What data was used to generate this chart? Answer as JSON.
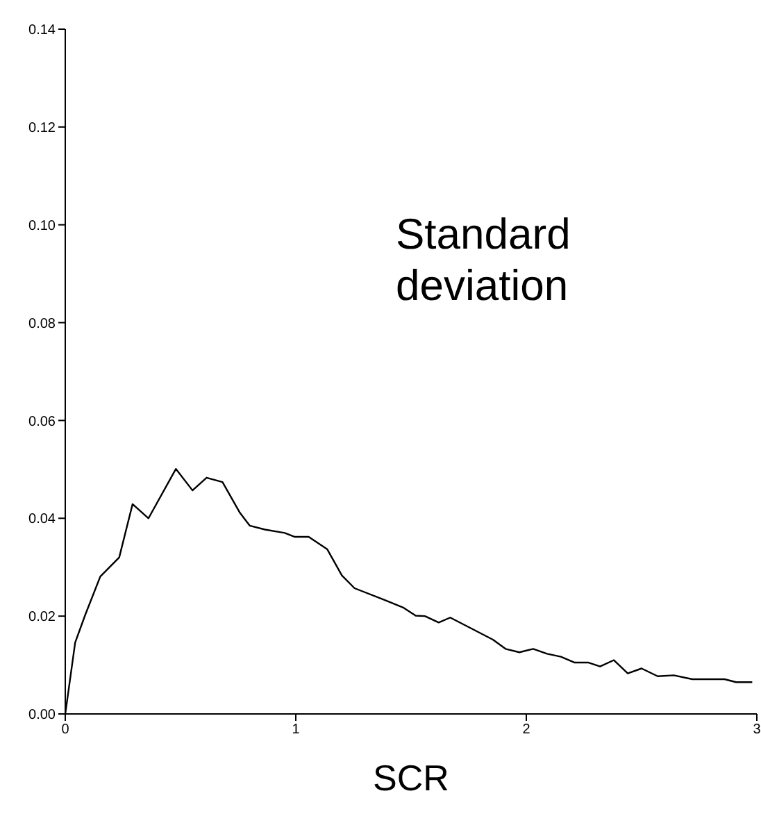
{
  "chart_data": {
    "type": "line",
    "xlabel": "SCR",
    "annotations": [
      "Standard deviation"
    ],
    "xlim": [
      0,
      3
    ],
    "xticks": [
      0,
      1,
      2,
      3
    ],
    "ylim": [
      0,
      0.14
    ],
    "yticks": [
      {
        "value": 0,
        "label": "0.00"
      },
      {
        "value": 0.02,
        "label": "0.02"
      },
      {
        "value": 0.04,
        "label": "0.04"
      },
      {
        "value": 0.06,
        "label": "0.06"
      },
      {
        "value": 0.08,
        "label": "0.08"
      },
      {
        "value": 0.1,
        "label": "0.10"
      },
      {
        "value": 0.12,
        "label": "0.12"
      },
      {
        "value": 0.14,
        "label": "0.14"
      }
    ],
    "grid": false,
    "legend": false,
    "marker": "none",
    "line_style": "solid",
    "series": [
      {
        "color": "#000000",
        "x": [
          0,
          0.043,
          0.087,
          0.152,
          0.234,
          0.292,
          0.361,
          0.48,
          0.552,
          0.613,
          0.682,
          0.758,
          0.8,
          0.866,
          0.952,
          0.996,
          1.056,
          1.136,
          1.2,
          1.255,
          1.385,
          1.468,
          1.52,
          1.56,
          1.62,
          1.67,
          1.74,
          1.855,
          1.91,
          1.97,
          2.03,
          2.09,
          2.15,
          2.21,
          2.27,
          2.32,
          2.38,
          2.44,
          2.5,
          2.57,
          2.64,
          2.72,
          2.86,
          2.91,
          2.98
        ],
        "values": [
          0,
          0.0146,
          0.0203,
          0.0281,
          0.032,
          0.0429,
          0.04,
          0.0501,
          0.0457,
          0.0483,
          0.0474,
          0.0411,
          0.0385,
          0.0377,
          0.037,
          0.0362,
          0.0362,
          0.0337,
          0.0283,
          0.0257,
          0.0233,
          0.0217,
          0.0201,
          0.02,
          0.0187,
          0.0197,
          0.018,
          0.0152,
          0.0133,
          0.0126,
          0.0133,
          0.0123,
          0.0117,
          0.0105,
          0.0105,
          0.0097,
          0.011,
          0.0083,
          0.0093,
          0.0077,
          0.0079,
          0.0071,
          0.0071,
          0.0065,
          0.0065
        ]
      }
    ]
  }
}
